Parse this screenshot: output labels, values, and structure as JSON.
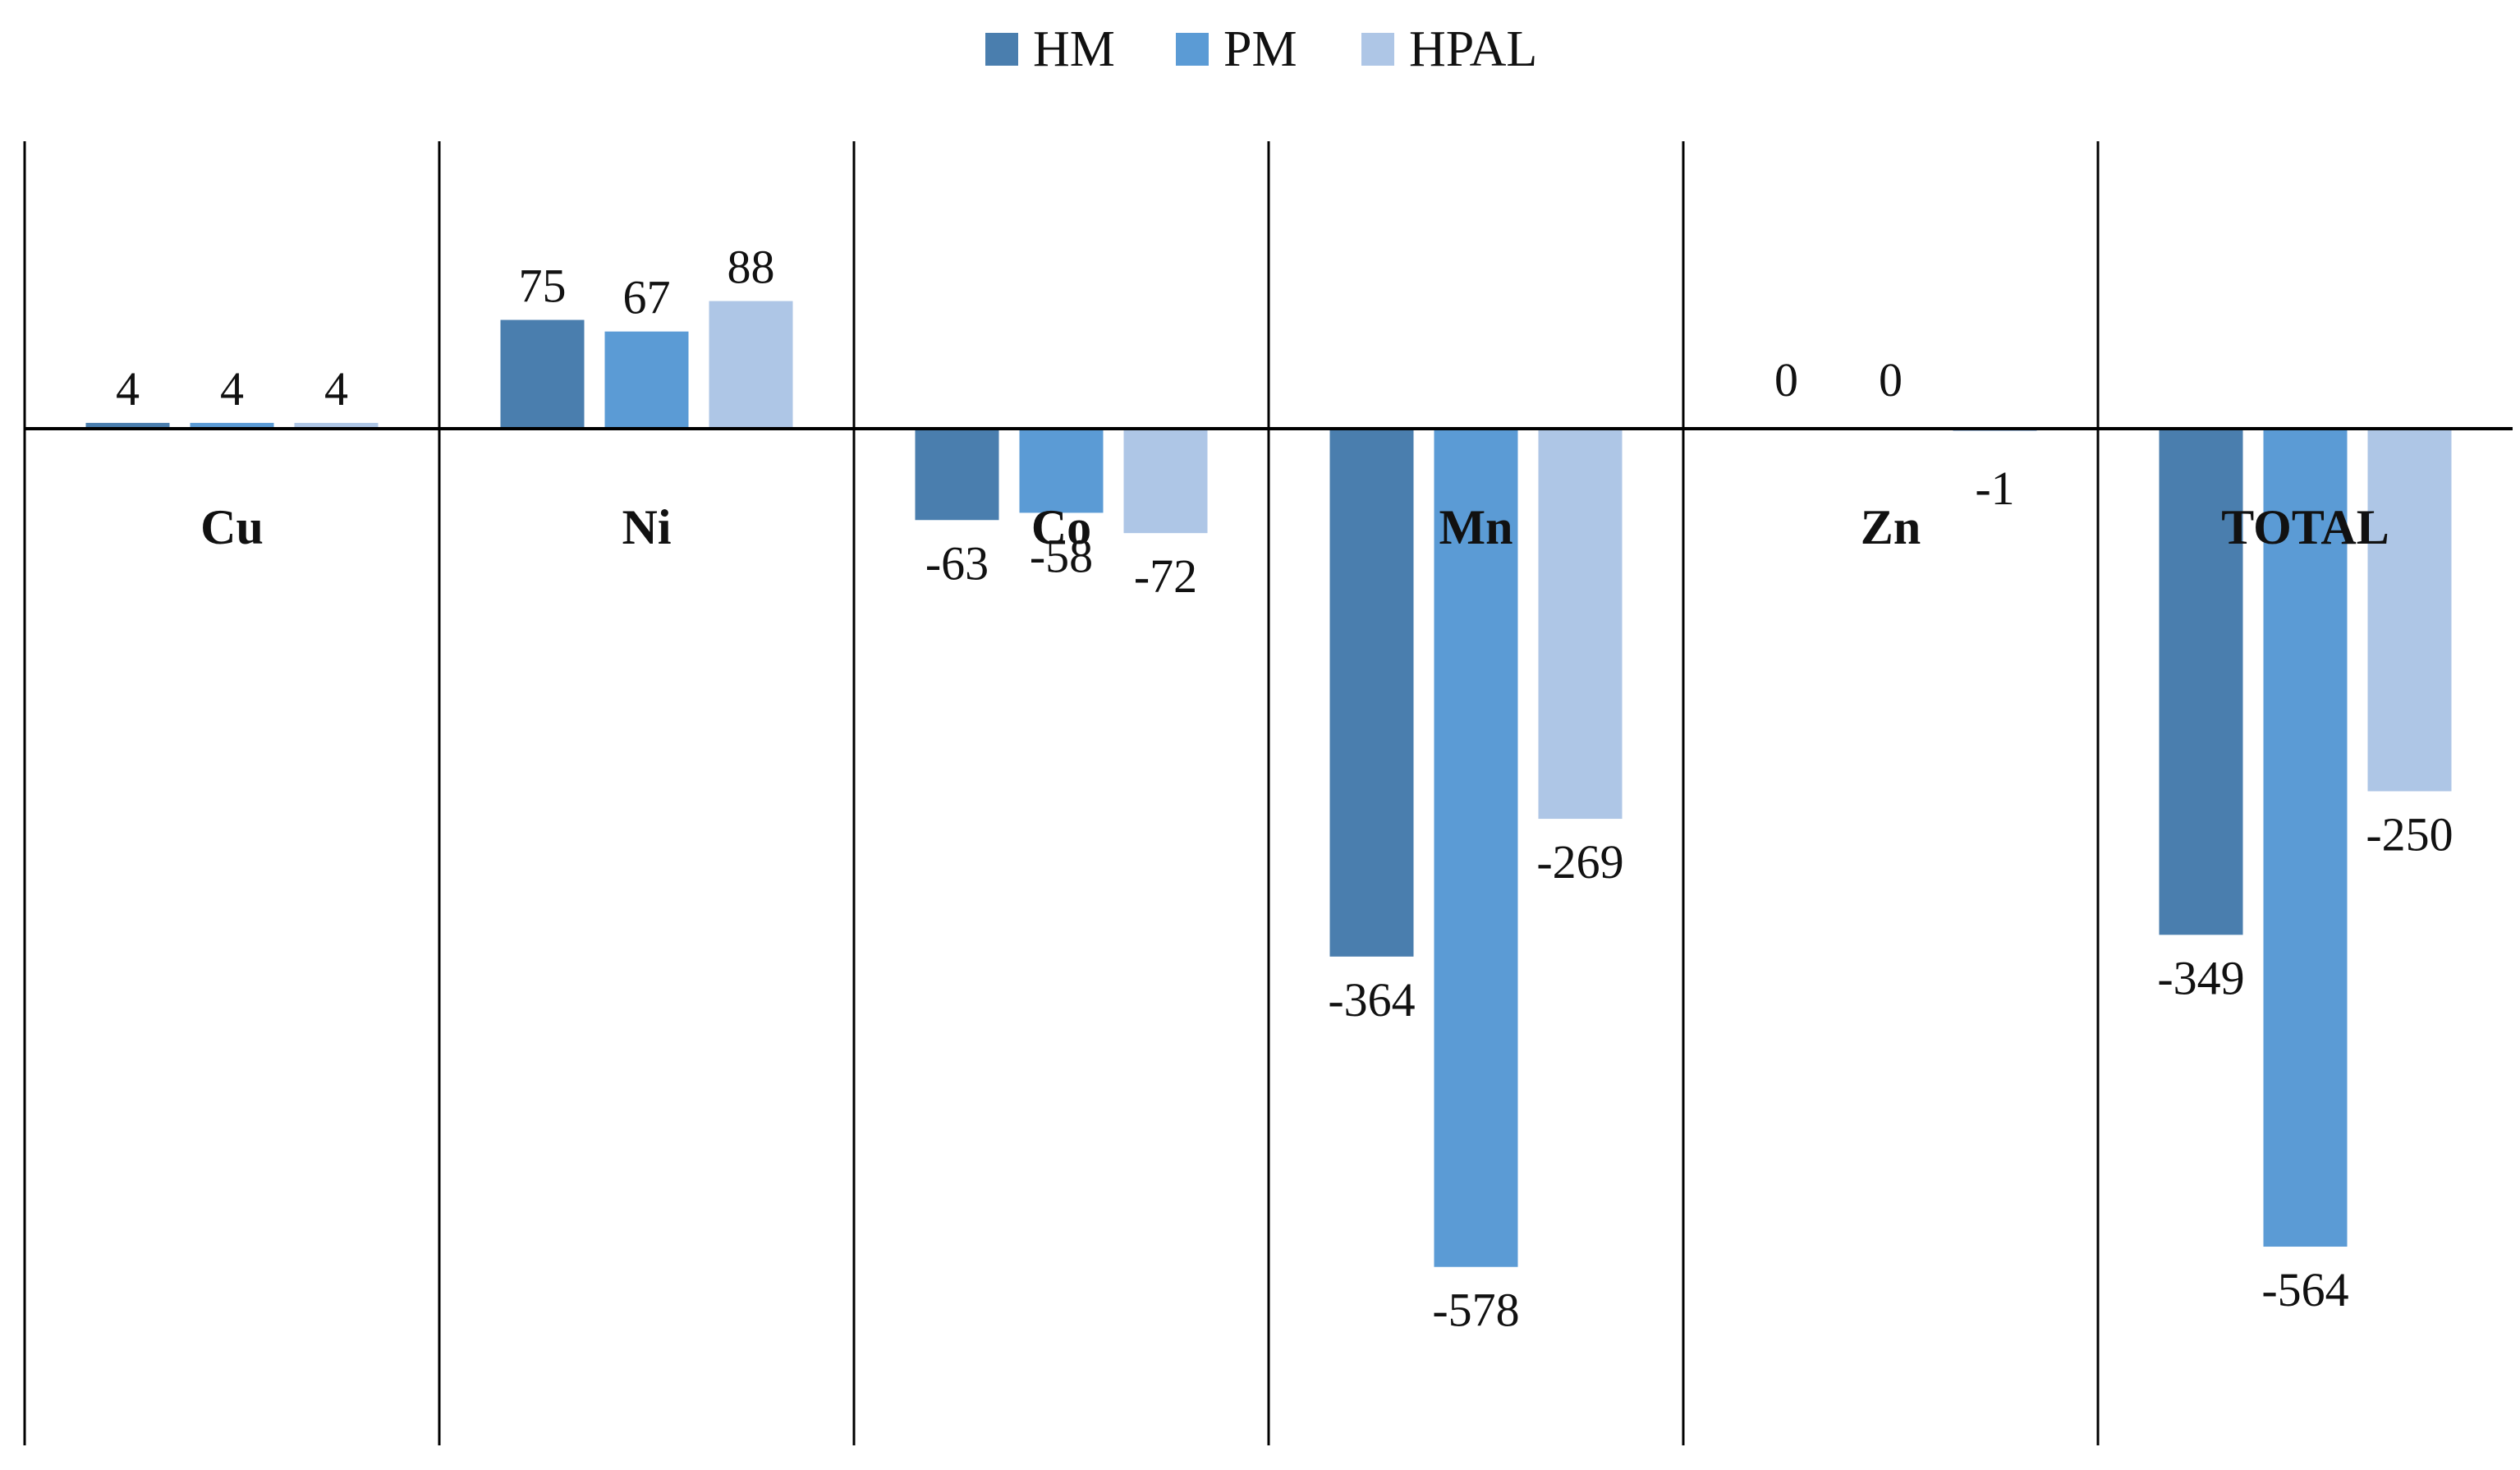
{
  "chart_data": {
    "type": "bar",
    "categories": [
      "Cu",
      "Ni",
      "Co",
      "Mn",
      "Zn",
      "TOTAL"
    ],
    "series": [
      {
        "name": "HM",
        "color": "#4a7eae",
        "values": [
          4,
          75,
          -63,
          -364,
          0,
          -349
        ]
      },
      {
        "name": "PM",
        "color": "#5b9bd5",
        "values": [
          4,
          67,
          -58,
          -578,
          0,
          -564
        ]
      },
      {
        "name": "HPAL",
        "color": "#aec6e6",
        "values": [
          4,
          88,
          -72,
          -269,
          -1,
          -250
        ]
      }
    ],
    "data_labels": [
      [
        "4",
        "75",
        "-63",
        "-364",
        "0",
        "-349"
      ],
      [
        "4",
        "67",
        "-58",
        "-578",
        "0",
        "-564"
      ],
      [
        "4",
        "88",
        "-72",
        "-269",
        "-1",
        "-250"
      ]
    ],
    "title": "",
    "xlabel": "",
    "ylabel": "",
    "ylim": [
      -628,
      201
    ],
    "grid": false,
    "legend_position": "top-center",
    "category_separators": true
  }
}
